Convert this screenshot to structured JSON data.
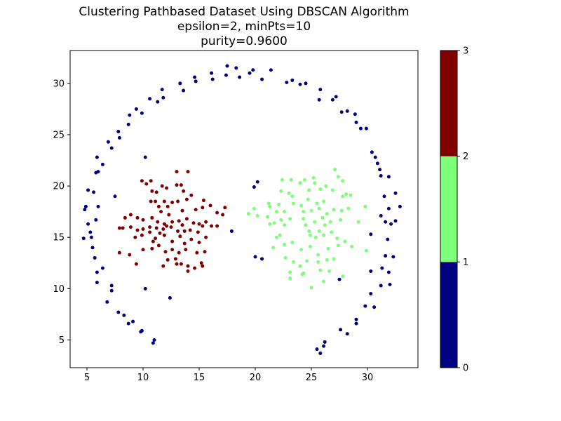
{
  "chart_data": {
    "type": "scatter",
    "title_lines": [
      "Clustering Pathbased Dataset Using DBSCAN Algorithm",
      "epsilon=2, minPts=10",
      "purity=0.9600"
    ],
    "xlabel": "",
    "ylabel": "",
    "xlim": [
      3.5,
      34.5
    ],
    "ylim": [
      2.3,
      33.2
    ],
    "x_ticks": [
      5,
      10,
      15,
      20,
      25,
      30
    ],
    "y_ticks": [
      5,
      10,
      15,
      20,
      25,
      30
    ],
    "grid": false,
    "colorbar": {
      "ticks": [
        0,
        1,
        2,
        3
      ],
      "range": [
        0,
        3
      ],
      "bands": [
        {
          "from": 0,
          "to": 1,
          "color": "#000080"
        },
        {
          "from": 1,
          "to": 2,
          "color": "#7dff7a"
        },
        {
          "from": 2,
          "to": 3,
          "color": "#800000"
        }
      ]
    },
    "series": [
      {
        "cluster": 1,
        "color": "#000080",
        "points": [
          [
            17.5,
            31.7
          ],
          [
            18.3,
            31.5
          ],
          [
            17.4,
            30.8
          ],
          [
            18.6,
            30.6
          ],
          [
            19.5,
            31.0
          ],
          [
            19.8,
            31.3
          ],
          [
            20.6,
            30.4
          ],
          [
            21.4,
            31.3
          ],
          [
            22.8,
            30.1
          ],
          [
            23.3,
            30.3
          ],
          [
            24.0,
            29.9
          ],
          [
            24.5,
            30.0
          ],
          [
            25.8,
            29.4
          ],
          [
            25.7,
            28.4
          ],
          [
            26.9,
            28.4
          ],
          [
            27.2,
            28.7
          ],
          [
            27.7,
            27.2
          ],
          [
            28.2,
            27.3
          ],
          [
            28.9,
            27.0
          ],
          [
            29.0,
            26.2
          ],
          [
            29.4,
            25.6
          ],
          [
            29.9,
            25.6
          ],
          [
            30.4,
            23.3
          ],
          [
            30.7,
            22.8
          ],
          [
            30.9,
            22.2
          ],
          [
            31.1,
            21.6
          ],
          [
            31.2,
            21.0
          ],
          [
            31.9,
            20.9
          ],
          [
            32.5,
            19.3
          ],
          [
            31.5,
            19.0
          ],
          [
            32.9,
            18.0
          ],
          [
            31.9,
            17.8
          ],
          [
            31.2,
            17.1
          ],
          [
            31.6,
            16.5
          ],
          [
            32.1,
            16.3
          ],
          [
            32.5,
            16.6
          ],
          [
            30.3,
            15.3
          ],
          [
            31.8,
            14.8
          ],
          [
            31.6,
            13.2
          ],
          [
            32.3,
            13.1
          ],
          [
            30.3,
            11.7
          ],
          [
            31.3,
            12.0
          ],
          [
            31.9,
            11.6
          ],
          [
            31.2,
            10.3
          ],
          [
            32.0,
            10.4
          ],
          [
            30.3,
            9.5
          ],
          [
            30.6,
            8.2
          ],
          [
            29.8,
            8.3
          ],
          [
            29.0,
            7.0
          ],
          [
            29.0,
            6.6
          ],
          [
            27.6,
            6.0
          ],
          [
            28.2,
            5.6
          ],
          [
            26.2,
            4.8
          ],
          [
            26.1,
            4.4
          ],
          [
            25.5,
            4.1
          ],
          [
            25.8,
            3.7
          ],
          [
            27.5,
            10.9
          ],
          [
            14.6,
            30.6
          ],
          [
            14.7,
            30.2
          ],
          [
            16.1,
            31.0
          ],
          [
            16.2,
            30.4
          ],
          [
            13.3,
            30.0
          ],
          [
            13.6,
            29.3
          ],
          [
            11.7,
            29.4
          ],
          [
            10.6,
            28.5
          ],
          [
            11.3,
            28.2
          ],
          [
            11.8,
            28.6
          ],
          [
            9.9,
            27.1
          ],
          [
            9.4,
            27.5
          ],
          [
            8.8,
            26.9
          ],
          [
            8.7,
            26.0
          ],
          [
            7.8,
            25.3
          ],
          [
            7.9,
            24.7
          ],
          [
            6.9,
            24.3
          ],
          [
            7.2,
            23.7
          ],
          [
            6.4,
            22.1
          ],
          [
            5.9,
            22.8
          ],
          [
            5.8,
            21.3
          ],
          [
            6.0,
            21.4
          ],
          [
            4.8,
            17.7
          ],
          [
            5.1,
            19.6
          ],
          [
            5.6,
            19.4
          ],
          [
            4.9,
            18.0
          ],
          [
            6.0,
            18.0
          ],
          [
            5.8,
            16.7
          ],
          [
            5.1,
            16.3
          ],
          [
            5.3,
            15.5
          ],
          [
            5.4,
            15.0
          ],
          [
            4.7,
            14.9
          ],
          [
            5.5,
            14.0
          ],
          [
            5.7,
            13.0
          ],
          [
            6.4,
            12.0
          ],
          [
            5.9,
            11.6
          ],
          [
            5.9,
            10.6
          ],
          [
            7.2,
            10.3
          ],
          [
            7.2,
            9.8
          ],
          [
            6.8,
            8.7
          ],
          [
            7.8,
            7.7
          ],
          [
            8.3,
            7.4
          ],
          [
            8.7,
            6.6
          ],
          [
            9.1,
            6.8
          ],
          [
            9.8,
            5.8
          ],
          [
            9.9,
            5.9
          ],
          [
            11.0,
            5.0
          ],
          [
            10.9,
            4.7
          ],
          [
            10.2,
            10.0
          ],
          [
            7.5,
            19.0
          ],
          [
            10.2,
            22.8
          ],
          [
            12.4,
            9.1
          ],
          [
            17.9,
            15.6
          ],
          [
            20.0,
            13.1
          ],
          [
            20.6,
            12.9
          ],
          [
            19.9,
            19.9
          ],
          [
            20.2,
            20.4
          ]
        ]
      },
      {
        "cluster": 2,
        "color": "#7dff7a",
        "points": [
          [
            19.4,
            17.3
          ],
          [
            19.9,
            17.8
          ],
          [
            20.2,
            17.1
          ],
          [
            21.2,
            18.3
          ],
          [
            21.3,
            18.0
          ],
          [
            21.1,
            17.0
          ],
          [
            21.3,
            16.3
          ],
          [
            22.1,
            18.2
          ],
          [
            21.9,
            17.5
          ],
          [
            21.7,
            16.4
          ],
          [
            22.6,
            17.5
          ],
          [
            22.3,
            16.7
          ],
          [
            22.6,
            16.2
          ],
          [
            23.1,
            16.8
          ],
          [
            22.4,
            20.6
          ],
          [
            22.3,
            19.5
          ],
          [
            23.2,
            20.6
          ],
          [
            23.0,
            19.3
          ],
          [
            24.0,
            20.3
          ],
          [
            24.4,
            20.6
          ],
          [
            25.2,
            20.8
          ],
          [
            25.3,
            20.3
          ],
          [
            24.8,
            19.6
          ],
          [
            25.8,
            19.7
          ],
          [
            26.3,
            20.0
          ],
          [
            27.1,
            21.6
          ],
          [
            27.4,
            20.9
          ],
          [
            27.8,
            20.5
          ],
          [
            28.1,
            19.2
          ],
          [
            28.5,
            19.1
          ],
          [
            27.8,
            19.0
          ],
          [
            26.9,
            19.6
          ],
          [
            26.1,
            18.5
          ],
          [
            25.5,
            18.3
          ],
          [
            24.7,
            18.7
          ],
          [
            24.1,
            18.1
          ],
          [
            23.4,
            18.3
          ],
          [
            23.3,
            19.0
          ],
          [
            24.3,
            17.5
          ],
          [
            25.0,
            17.6
          ],
          [
            25.7,
            17.8
          ],
          [
            26.4,
            17.3
          ],
          [
            27.0,
            17.7
          ],
          [
            27.7,
            17.6
          ],
          [
            28.3,
            17.8
          ],
          [
            29.8,
            18.0
          ],
          [
            27.6,
            16.7
          ],
          [
            26.7,
            16.5
          ],
          [
            26.0,
            16.9
          ],
          [
            25.3,
            16.5
          ],
          [
            24.5,
            16.2
          ],
          [
            24.8,
            15.6
          ],
          [
            25.4,
            15.0
          ],
          [
            26.1,
            15.2
          ],
          [
            26.8,
            15.5
          ],
          [
            27.3,
            14.9
          ],
          [
            28.0,
            14.6
          ],
          [
            28.6,
            14.1
          ],
          [
            29.2,
            16.5
          ],
          [
            29.9,
            13.7
          ],
          [
            27.4,
            14.2
          ],
          [
            26.5,
            13.9
          ],
          [
            25.6,
            13.3
          ],
          [
            24.9,
            14.1
          ],
          [
            24.1,
            13.8
          ],
          [
            23.3,
            14.5
          ],
          [
            22.6,
            14.3
          ],
          [
            22.2,
            15.2
          ],
          [
            21.9,
            15.0
          ],
          [
            21.6,
            14.0
          ],
          [
            22.7,
            13.0
          ],
          [
            23.4,
            12.6
          ],
          [
            24.0,
            12.2
          ],
          [
            24.6,
            12.7
          ],
          [
            25.6,
            12.6
          ],
          [
            25.8,
            11.8
          ],
          [
            26.4,
            12.8
          ],
          [
            27.0,
            12.9
          ],
          [
            24.3,
            11.5
          ],
          [
            23.1,
            11.6
          ],
          [
            23.1,
            11.0
          ],
          [
            24.2,
            11.4
          ],
          [
            25.0,
            10.1
          ],
          [
            26.1,
            10.7
          ],
          [
            26.6,
            11.7
          ],
          [
            27.8,
            11.2
          ],
          [
            24.9,
            15.2
          ],
          [
            25.7,
            15.6
          ],
          [
            26.2,
            16.2
          ],
          [
            24.3,
            16.8
          ]
        ]
      },
      {
        "cluster": 3,
        "color": "#800000",
        "points": [
          [
            9.9,
            20.5
          ],
          [
            10.3,
            20.2
          ],
          [
            10.8,
            19.5
          ],
          [
            10.7,
            20.5
          ],
          [
            11.2,
            19.4
          ],
          [
            11.7,
            20.0
          ],
          [
            12.1,
            19.8
          ],
          [
            13.0,
            21.4
          ],
          [
            13.0,
            20.1
          ],
          [
            13.4,
            20.1
          ],
          [
            14.0,
            21.4
          ],
          [
            13.6,
            19.5
          ],
          [
            10.7,
            18.5
          ],
          [
            11.1,
            18.5
          ],
          [
            11.4,
            18.0
          ],
          [
            11.6,
            17.5
          ],
          [
            11.9,
            18.5
          ],
          [
            12.2,
            18.0
          ],
          [
            12.6,
            18.4
          ],
          [
            13.1,
            18.5
          ],
          [
            13.5,
            17.6
          ],
          [
            13.9,
            18.7
          ],
          [
            14.3,
            19.1
          ],
          [
            14.7,
            17.7
          ],
          [
            15.3,
            17.9
          ],
          [
            15.4,
            18.6
          ],
          [
            16.0,
            18.1
          ],
          [
            16.6,
            17.4
          ],
          [
            17.3,
            17.9
          ],
          [
            8.4,
            16.9
          ],
          [
            8.9,
            17.2
          ],
          [
            9.5,
            16.9
          ],
          [
            10.0,
            16.7
          ],
          [
            10.8,
            16.9
          ],
          [
            11.3,
            16.5
          ],
          [
            11.9,
            16.3
          ],
          [
            12.6,
            16.5
          ],
          [
            13.2,
            16.6
          ],
          [
            13.9,
            16.8
          ],
          [
            14.5,
            16.4
          ],
          [
            15.0,
            16.3
          ],
          [
            15.6,
            16.5
          ],
          [
            16.6,
            16.1
          ],
          [
            17.1,
            17.2
          ],
          [
            7.9,
            15.9
          ],
          [
            8.2,
            15.9
          ],
          [
            8.9,
            16.0
          ],
          [
            9.5,
            15.7
          ],
          [
            10.0,
            15.8
          ],
          [
            10.6,
            16.0
          ],
          [
            11.2,
            15.9
          ],
          [
            11.8,
            15.8
          ],
          [
            12.1,
            16.1
          ],
          [
            12.5,
            16.0
          ],
          [
            13.1,
            15.6
          ],
          [
            13.7,
            15.6
          ],
          [
            14.2,
            15.7
          ],
          [
            14.9,
            15.5
          ],
          [
            15.3,
            16.1
          ],
          [
            16.1,
            16.1
          ],
          [
            9.3,
            15.0
          ],
          [
            9.9,
            15.2
          ],
          [
            10.6,
            15.5
          ],
          [
            11.1,
            14.9
          ],
          [
            11.9,
            15.2
          ],
          [
            12.6,
            14.6
          ],
          [
            13.3,
            15.1
          ],
          [
            13.7,
            14.4
          ],
          [
            14.3,
            14.8
          ],
          [
            15.0,
            14.5
          ],
          [
            15.6,
            15.0
          ],
          [
            10.0,
            13.8
          ],
          [
            10.8,
            13.9
          ],
          [
            11.4,
            14.2
          ],
          [
            12.0,
            13.6
          ],
          [
            12.6,
            13.8
          ],
          [
            13.2,
            13.5
          ],
          [
            13.8,
            13.8
          ],
          [
            14.8,
            13.5
          ],
          [
            15.5,
            13.6
          ],
          [
            7.9,
            13.5
          ],
          [
            8.8,
            13.3
          ],
          [
            9.4,
            12.4
          ],
          [
            11.8,
            12.2
          ],
          [
            12.2,
            12.8
          ],
          [
            13.0,
            12.4
          ],
          [
            13.4,
            12.4
          ],
          [
            14.0,
            12.2
          ],
          [
            14.6,
            12.0
          ],
          [
            15.2,
            12.5
          ],
          [
            15.3,
            12.2
          ],
          [
            14.0,
            11.7
          ],
          [
            12.9,
            12.9
          ],
          [
            10.9,
            14.6
          ],
          [
            11.5,
            15.4
          ],
          [
            13.5,
            16.2
          ],
          [
            12.3,
            17.2
          ]
        ]
      }
    ]
  }
}
